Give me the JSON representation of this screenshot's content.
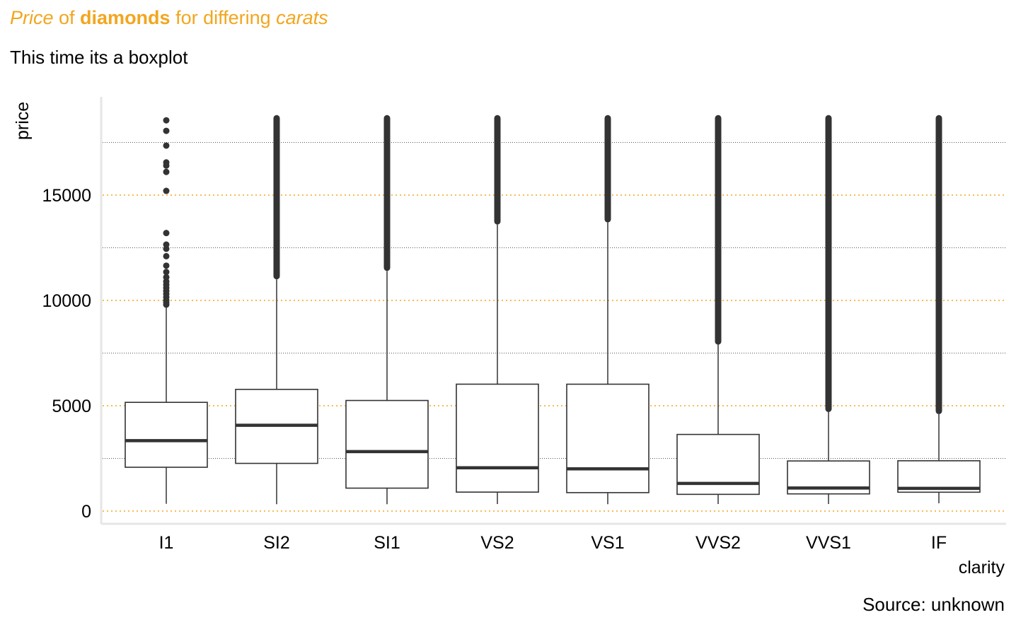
{
  "title": {
    "part1": "Price",
    "part2": " of ",
    "part3": "diamonds",
    "part4": " for differing ",
    "part5": "carats"
  },
  "subtitle": "This time its a boxplot",
  "caption": "Source: unknown",
  "colors": {
    "accent": "#F2A61F",
    "ink": "#333333",
    "minor_grid": "#555555",
    "axis_line": "#E6E6E6"
  },
  "chart_data": {
    "type": "boxplot",
    "xlabel": "clarity",
    "ylabel": "price",
    "ylim": [
      -600,
      19000
    ],
    "y_ticks": [
      0,
      5000,
      10000,
      15000
    ],
    "y_tick_labels": [
      "0",
      "5000",
      "10000",
      "15000"
    ],
    "y_minor_grid": [
      2500,
      7500,
      12500,
      17500
    ],
    "grid": "major dotted accent, minor dotted dark",
    "categories": [
      "I1",
      "SI2",
      "SI1",
      "VS2",
      "VS1",
      "VVS2",
      "VVS1",
      "IF"
    ],
    "boxes": [
      {
        "category": "I1",
        "lower_whisker": 345,
        "q1": 2080,
        "median": 3344,
        "q3": 5161,
        "upper_whisker": 9700,
        "outliers": [
          9800,
          9900,
          10000,
          10150,
          10300,
          10450,
          10600,
          10750,
          10900,
          11100,
          11350,
          11650,
          12100,
          12450,
          12650,
          13200,
          15200,
          16100,
          16400,
          16550,
          17350,
          18050,
          18550
        ]
      },
      {
        "category": "SI2",
        "lower_whisker": 326,
        "q1": 2264,
        "median": 4072,
        "q3": 5777,
        "upper_whisker": 11000,
        "outlier_range": [
          11000,
          18800
        ]
      },
      {
        "category": "SI1",
        "lower_whisker": 326,
        "q1": 1089,
        "median": 2822,
        "q3": 5250,
        "upper_whisker": 11400,
        "outlier_range": [
          11400,
          18800
        ]
      },
      {
        "category": "VS2",
        "lower_whisker": 334,
        "q1": 900,
        "median": 2054,
        "q3": 6024,
        "upper_whisker": 13600,
        "outlier_range": [
          13600,
          18800
        ]
      },
      {
        "category": "VS1",
        "lower_whisker": 327,
        "q1": 876,
        "median": 2005,
        "q3": 6023,
        "upper_whisker": 13700,
        "outlier_range": [
          13700,
          18800
        ]
      },
      {
        "category": "VVS2",
        "lower_whisker": 336,
        "q1": 794,
        "median": 1311,
        "q3": 3638,
        "upper_whisker": 7900,
        "outlier_range": [
          7900,
          18800
        ]
      },
      {
        "category": "VVS1",
        "lower_whisker": 336,
        "q1": 816,
        "median": 1093,
        "q3": 2379,
        "upper_whisker": 4700,
        "outlier_range": [
          4700,
          18800
        ]
      },
      {
        "category": "IF",
        "lower_whisker": 369,
        "q1": 895,
        "median": 1080,
        "q3": 2388,
        "upper_whisker": 4600,
        "outlier_range": [
          4600,
          18800
        ]
      }
    ]
  }
}
